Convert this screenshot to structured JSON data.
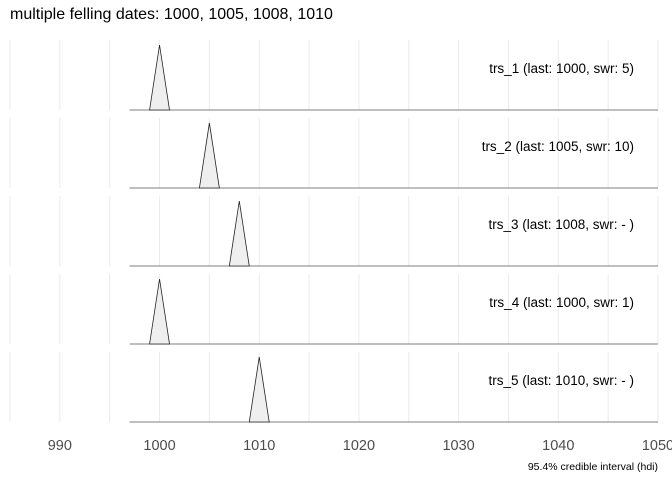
{
  "chart_data": {
    "type": "area",
    "title": "multiple felling dates: 1000, 1005, 1008, 1010",
    "xlabel": "",
    "ylabel": "",
    "caption": "95.4% credible interval (hdi)",
    "xlim": [
      985,
      1050
    ],
    "xticks": [
      990,
      1000,
      1010,
      1020,
      1030,
      1040,
      1050
    ],
    "grid": true,
    "series": [
      {
        "name": "trs_1 (last: 1000, swr: 5)",
        "range": [
          997,
          1050
        ],
        "peak": 1000,
        "interval": [
          999,
          1001
        ]
      },
      {
        "name": "trs_2 (last: 1005, swr: 10)",
        "range": [
          997,
          1050
        ],
        "peak": 1005,
        "interval": [
          1004,
          1006
        ]
      },
      {
        "name": "trs_3 (last: 1008, swr: - )",
        "range": [
          997,
          1050
        ],
        "peak": 1008,
        "interval": [
          1007,
          1009
        ]
      },
      {
        "name": "trs_4 (last: 1000, swr: 1)",
        "range": [
          997,
          1050
        ],
        "peak": 1000,
        "interval": [
          999,
          1001
        ]
      },
      {
        "name": "trs_5 (last: 1010, swr: - )",
        "range": [
          997,
          1050
        ],
        "peak": 1010,
        "interval": [
          1009,
          1011
        ]
      }
    ]
  }
}
